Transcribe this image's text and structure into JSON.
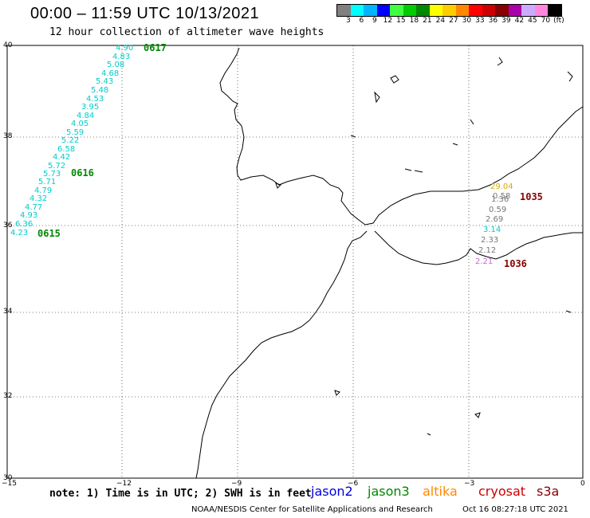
{
  "header": {
    "title": "00:00 – 11:59 UTC 10/13/2021",
    "subtitle": "12 hour collection of altimeter wave heights"
  },
  "colorbar": {
    "colors": [
      "#808080",
      "#00ffff",
      "#00b4ff",
      "#0000ff",
      "#40ff40",
      "#00cc00",
      "#008800",
      "#ffff00",
      "#ffcc00",
      "#ff8800",
      "#ff0000",
      "#cc0000",
      "#880000",
      "#aa00aa",
      "#ccaaff",
      "#ff88dd",
      "#000000"
    ],
    "labels": [
      "3",
      "6",
      "9",
      "12",
      "15",
      "18",
      "21",
      "24",
      "27",
      "30",
      "33",
      "36",
      "39",
      "42",
      "45",
      "70",
      "(ft)"
    ]
  },
  "axes": {
    "lat_labels": [
      "40",
      "38",
      "36",
      "34",
      "32",
      "30"
    ],
    "lon_labels": [
      "−15",
      "−12",
      "−9",
      "−6",
      "−3",
      "0"
    ]
  },
  "tracks": [
    {
      "id": "west-track",
      "color": "#00cccc",
      "values": [
        "4.90",
        "4.83",
        "5.08",
        "4.68",
        "5.43",
        "5.48",
        "4.53",
        "3.95",
        "4.84",
        "4.05",
        "5.59",
        "5.22",
        "6.58",
        "4.42",
        "5.72",
        "5.73",
        "5.71",
        "4.79",
        "4.32",
        "4.77",
        "4.93",
        "6.36",
        "4.23"
      ]
    }
  ],
  "med_values": [
    {
      "text": "29.04",
      "color": "#ddaa00"
    },
    {
      "text": "0.58",
      "color": "#777777"
    },
    {
      "text": "1.36",
      "color": "#777777"
    },
    {
      "text": "0.59",
      "color": "#777777"
    },
    {
      "text": "2.69",
      "color": "#777777"
    },
    {
      "text": "3.14",
      "color": "#00cccc"
    },
    {
      "text": "2.33",
      "color": "#777777"
    },
    {
      "text": "2.12",
      "color": "#777777"
    },
    {
      "text": "2.21",
      "color": "#cc66cc"
    }
  ],
  "times": [
    {
      "text": "0617",
      "color": "#008800"
    },
    {
      "text": "0616",
      "color": "#008800"
    },
    {
      "text": "0615",
      "color": "#008800"
    },
    {
      "text": "1035",
      "color": "#880000"
    },
    {
      "text": "1036",
      "color": "#880000"
    }
  ],
  "footer": {
    "note": "note: 1) Time is in UTC; 2) SWH is in feet",
    "satellites": [
      {
        "name": "jason2",
        "color": "#0000dd"
      },
      {
        "name": "jason3",
        "color": "#008800"
      },
      {
        "name": "altika",
        "color": "#ff8800"
      },
      {
        "name": "cryosat",
        "color": "#cc0000"
      },
      {
        "name": "s3a",
        "color": "#880000"
      }
    ],
    "credit": "NOAA/NESDIS Center for Satellite Applications and Research",
    "timestamp": "Oct 16 08:27:18 UTC 2021"
  }
}
